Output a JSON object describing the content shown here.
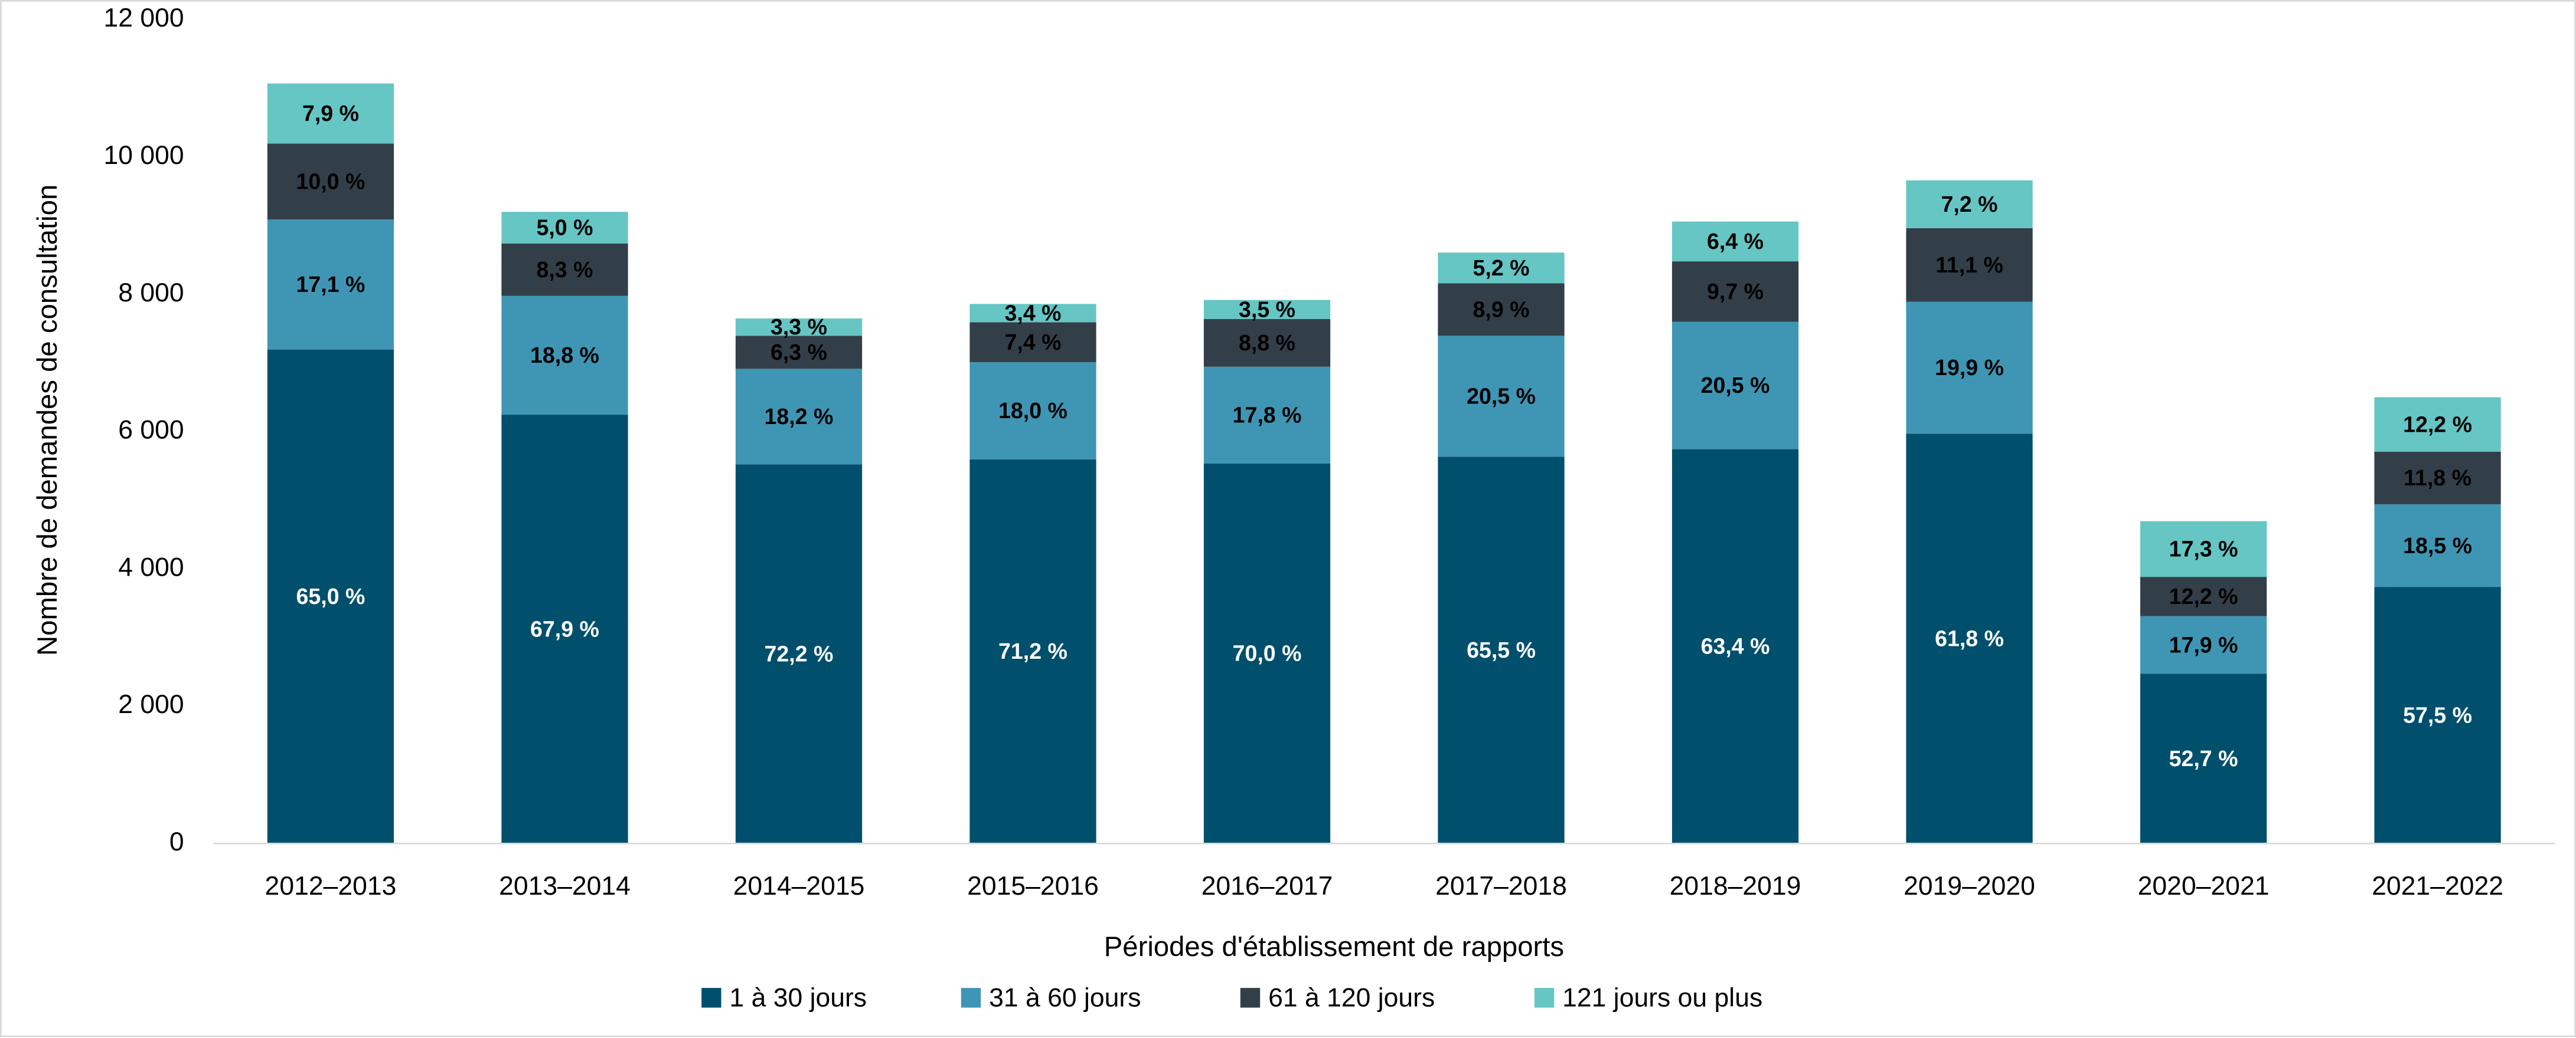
{
  "chart_data": {
    "type": "stacked_bar",
    "x_label": "Périodes d'établissement de rapports",
    "y_label": "Nombre de demandes de consultation",
    "categories": [
      "2012–2013",
      "2013–2014",
      "2014–2015",
      "2015–2016",
      "2016–2017",
      "2017–2018",
      "2018–2019",
      "2019–2020",
      "2020–2021",
      "2021–2022"
    ],
    "series": [
      {
        "name": "1 à 30 jours",
        "color": "#004f6d",
        "values": [
          7196,
          6247,
          5523,
          5596,
          5537,
          5633,
          5744,
          5970,
          2472,
          3738
        ],
        "value_labels": [
          "65,0 %",
          "67,9 %",
          "72,2 %",
          "71,2 %",
          "70,0 %",
          "65,5 %",
          "63,4 %",
          "61,8 %",
          "52,7 %",
          "57,5 %"
        ]
      },
      {
        "name": "31 à 60 jours",
        "color": "#3f96b4",
        "values": [
          1893,
          1730,
          1392,
          1415,
          1408,
          1763,
          1857,
          1922,
          840,
          1203
        ],
        "value_labels": [
          "17,1 %",
          "18,8 %",
          "18,2 %",
          "18,0 %",
          "17,8 %",
          "20,5 %",
          "20,5 %",
          "19,9 %",
          "17,9 %",
          "18,5 %"
        ]
      },
      {
        "name": "61 à 120 jours",
        "color": "#333f48",
        "values": [
          1107,
          764,
          482,
          582,
          696,
          765,
          879,
          1072,
          572,
          767
        ],
        "value_labels": [
          "10,0 %",
          "8,3 %",
          "6,3 %",
          "7,4 %",
          "8,8 %",
          "8,9 %",
          "9,7 %",
          "11,1 %",
          "12,2 %",
          "11,8 %"
        ]
      },
      {
        "name": "121 jours ou plus",
        "color": "#65c6c4",
        "values": [
          875,
          460,
          252,
          267,
          277,
          447,
          580,
          696,
          811,
          793
        ],
        "value_labels": [
          "7,9 %",
          "5,0 %",
          "3,3 %",
          "3,4 %",
          "3,5 %",
          "5,2 %",
          "6,4 %",
          "7,2 %",
          "17,3 %",
          "12,2 %"
        ]
      }
    ],
    "ylim": [
      0,
      12000
    ],
    "yticks": [
      0,
      {
        "value": 2000,
        "label": "2 000"
      },
      {
        "value": 4000,
        "label": "4 000"
      },
      {
        "value": 6000,
        "label": "6 000"
      },
      {
        "value": 8000,
        "label": "8 000"
      },
      {
        "value": 10000,
        "label": "10 000"
      },
      {
        "value": 12000,
        "label": "12 000"
      }
    ],
    "legend": "bottom"
  }
}
